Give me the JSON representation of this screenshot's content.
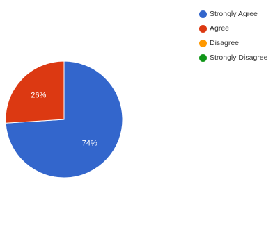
{
  "chart_data": {
    "type": "pie",
    "title": "",
    "slices": [
      {
        "label": "Strongly Agree",
        "value": 74,
        "value_label": "74%",
        "color": "#3366cc"
      },
      {
        "label": "Agree",
        "value": 26,
        "value_label": "26%",
        "color": "#dc3912"
      },
      {
        "label": "Disagree",
        "value": 0,
        "value_label": "",
        "color": "#ff9900"
      },
      {
        "label": "Strongly Disagree",
        "value": 0,
        "value_label": "",
        "color": "#109618"
      }
    ],
    "legend_position": "right"
  }
}
